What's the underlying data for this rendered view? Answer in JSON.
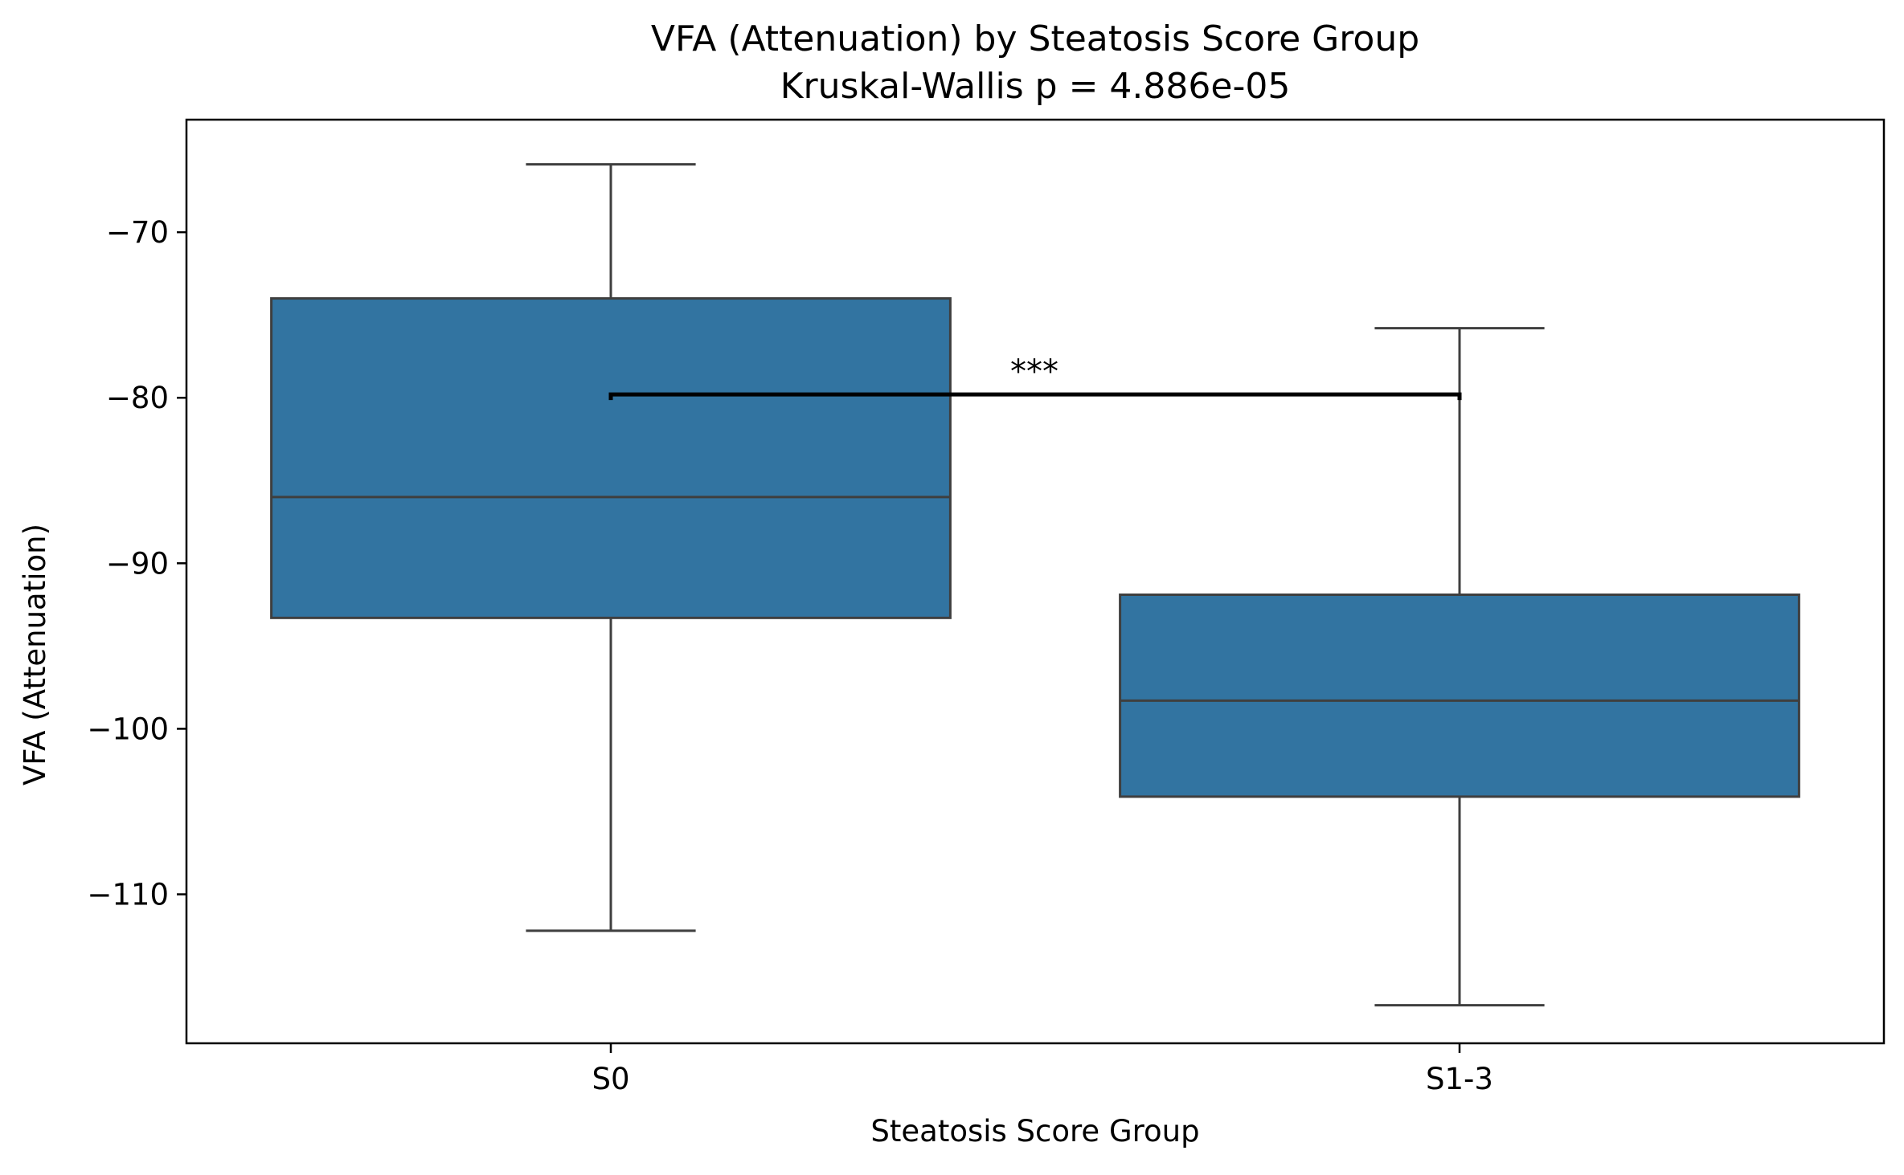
{
  "chart_data": {
    "type": "box",
    "title": "VFA (Attenuation) by Steatosis Score Group",
    "subtitle": "Kruskal-Wallis p = 4.886e-05",
    "xlabel": "Steatosis Score Group",
    "ylabel": "VFA (Attenuation)",
    "ylim": [
      -119.0,
      -63.2
    ],
    "yticks": [
      -70,
      -80,
      -90,
      -100,
      -110
    ],
    "grid": false,
    "box_color": "#3274a1",
    "edge_color": "#3f3f3f",
    "categories": [
      "S0",
      "S1-3"
    ],
    "boxes": [
      {
        "category": "S0",
        "whisker_low": -112.2,
        "q1": -93.3,
        "median": -86.0,
        "q3": -74.0,
        "whisker_high": -65.9
      },
      {
        "category": "S1-3",
        "whisker_low": -116.7,
        "q1": -104.1,
        "median": -98.3,
        "q3": -91.9,
        "whisker_high": -75.8
      }
    ],
    "annotation": {
      "text": "***",
      "from": "S0",
      "to": "S1-3",
      "y": -79.8
    }
  }
}
